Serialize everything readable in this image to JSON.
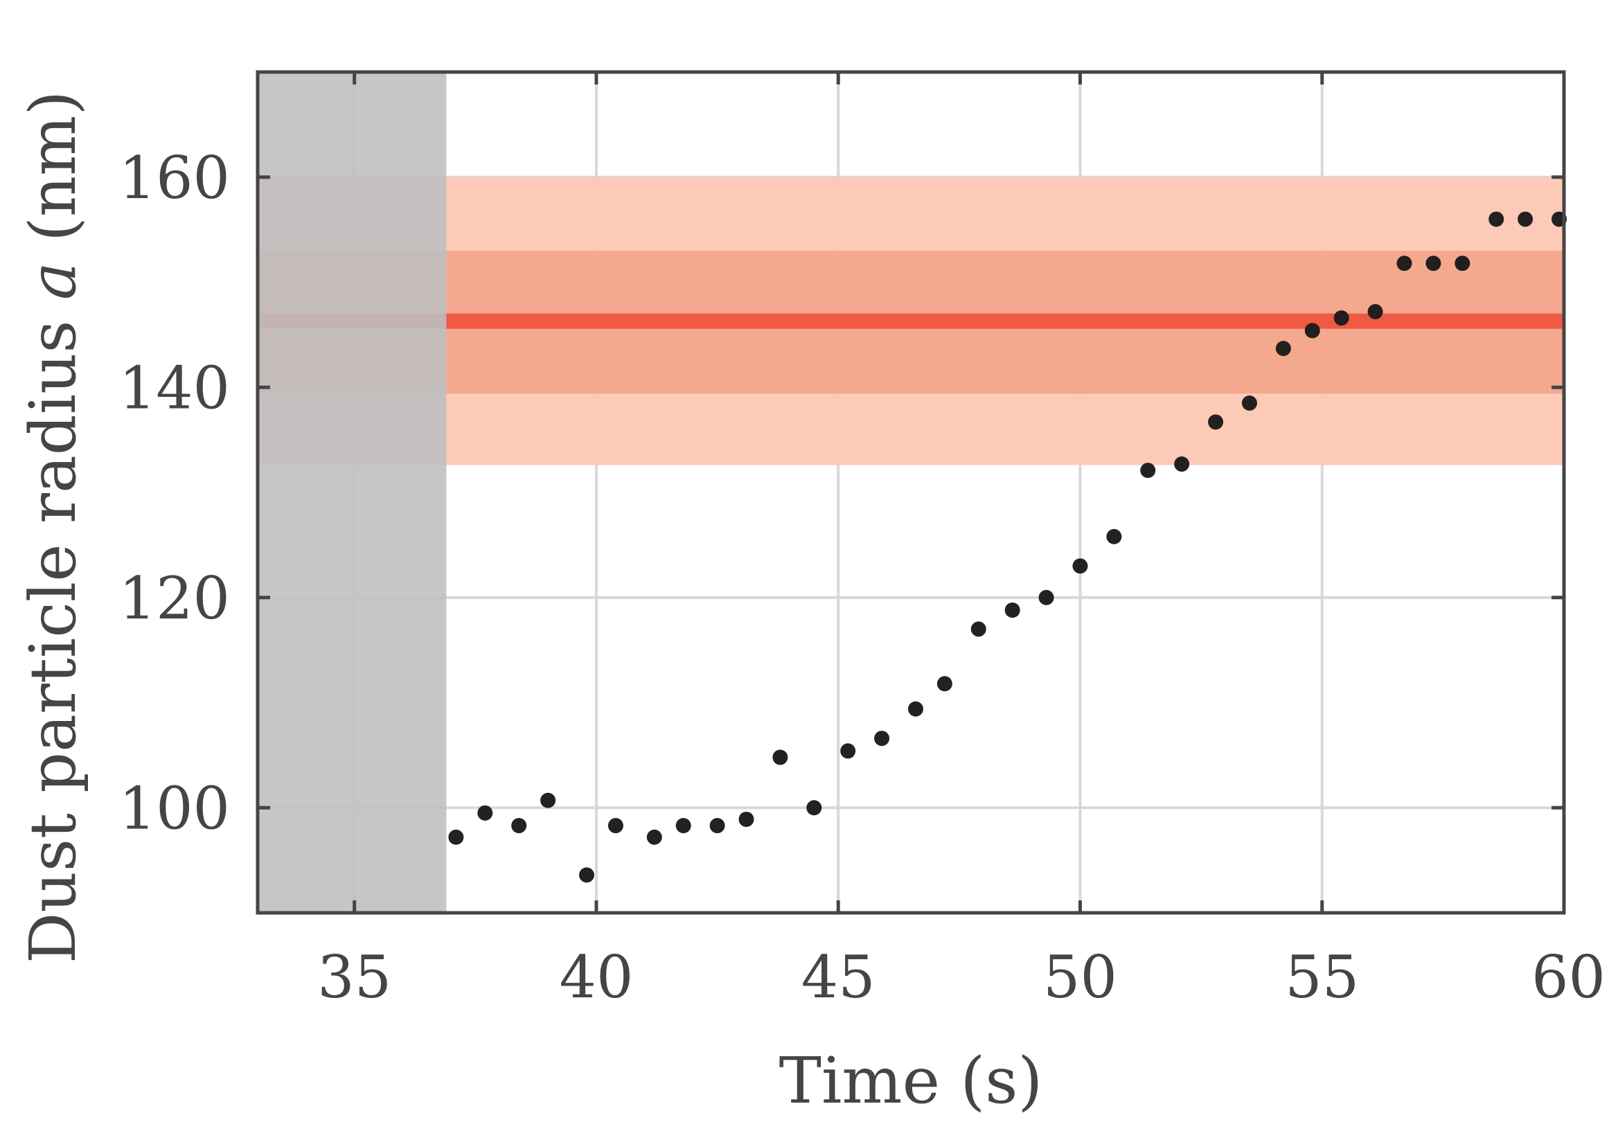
{
  "chart_data": {
    "type": "scatter",
    "xlabel": "Time (s)",
    "ylabel_parts": [
      "Dust particle radius ",
      "a",
      " (nm)"
    ],
    "xlim": [
      33,
      60
    ],
    "ylim": [
      90,
      170
    ],
    "xticks": [
      35,
      40,
      45,
      50,
      55,
      60
    ],
    "yticks": [
      100,
      120,
      140,
      160
    ],
    "grid": true,
    "shaded_time_interval": [
      33,
      36.9
    ],
    "reference": {
      "value": 146.3,
      "inner_band": [
        139.4,
        153
      ],
      "outer_band": [
        132.6,
        160
      ]
    },
    "points": {
      "x": [
        37.1,
        37.7,
        38.4,
        39.0,
        39.8,
        40.4,
        41.2,
        41.8,
        42.5,
        43.1,
        43.8,
        44.5,
        45.2,
        45.9,
        46.6,
        47.2,
        47.9,
        48.6,
        49.3,
        50.0,
        50.7,
        51.4,
        52.1,
        52.8,
        53.5,
        54.2,
        54.8,
        55.4,
        56.1,
        56.7,
        57.3,
        57.9,
        58.6,
        59.2,
        59.9
      ],
      "y": [
        97.2,
        99.5,
        98.3,
        100.7,
        93.6,
        98.3,
        97.2,
        98.3,
        98.3,
        98.9,
        104.8,
        100.0,
        105.4,
        106.6,
        109.4,
        111.8,
        117.0,
        118.8,
        120.0,
        123.0,
        125.8,
        132.1,
        132.7,
        136.7,
        138.5,
        143.7,
        145.4,
        146.6,
        147.2,
        151.8,
        151.8,
        151.8,
        156.0,
        156.0,
        156.0
      ]
    },
    "colors": {
      "points": "#1c1b1b",
      "reference_line": "#ee5a43",
      "inner_band": "#f3a488",
      "outer_band": "#fcc7b3",
      "shaded_interval": "#bcbec0",
      "axes": "#454545",
      "grid": "#d8d8d8"
    }
  }
}
